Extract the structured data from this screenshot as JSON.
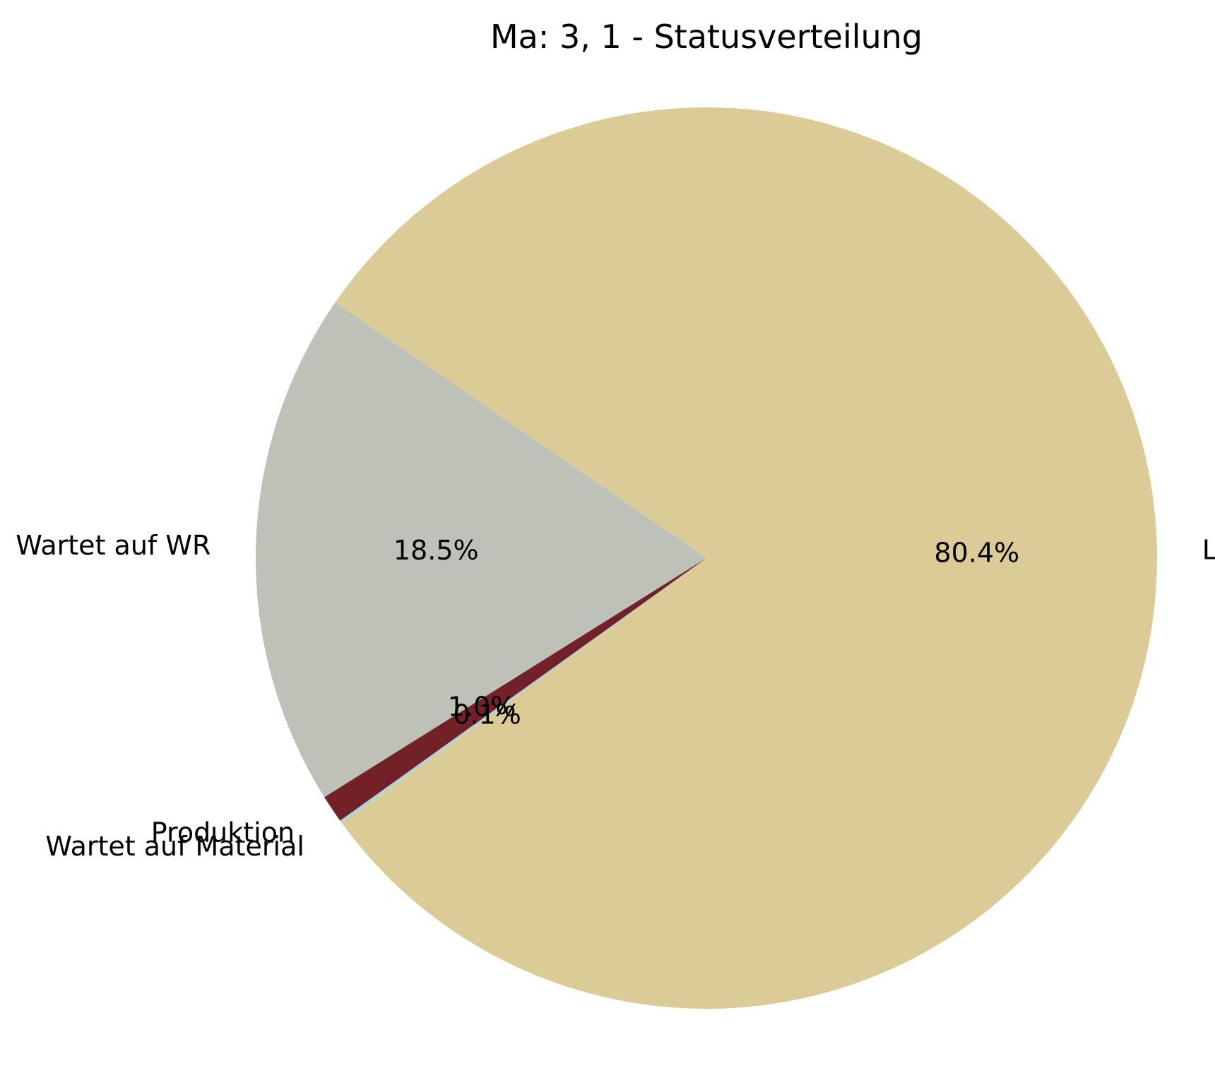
{
  "chart_data": {
    "type": "pie",
    "title": "Ma: 3, 1 - Statusverteilung",
    "slices": [
      {
        "label": "Leerlauf",
        "value": 80.4,
        "pct_label": "80.4%",
        "color": "#dbcb96"
      },
      {
        "label": "Wartet auf WR",
        "value": 18.5,
        "pct_label": "18.5%",
        "color": "#bec1b8"
      },
      {
        "label": "Produktion",
        "value": 1.0,
        "pct_label": "1.0%",
        "color": "#732128"
      },
      {
        "label": "Wartet auf Material",
        "value": 0.1,
        "pct_label": "0.1%",
        "color": "#a9d3e0"
      }
    ],
    "start_angle_deg": -144,
    "direction": "counterclockwise",
    "legend": "none"
  }
}
